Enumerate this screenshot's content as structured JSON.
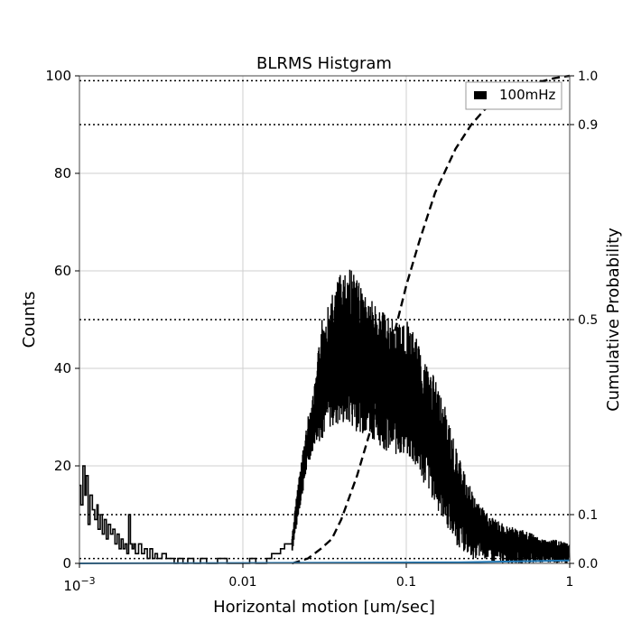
{
  "chart_data": {
    "type": "line",
    "title": "BLRMS Histgram",
    "xlabel": "Horizontal motion [um/sec]",
    "ylabel": "Counts",
    "ylabel_right": "Cumulative Probability",
    "xscale": "log",
    "xlim": [
      0.001,
      1
    ],
    "ylim": [
      0,
      100
    ],
    "ylim_right": [
      0,
      1
    ],
    "x_ticks": [
      {
        "value": 0.001,
        "base": "10",
        "exp": "−3"
      },
      {
        "value": 0.01,
        "label": "0.01"
      },
      {
        "value": 0.1,
        "label": "0.1"
      },
      {
        "value": 1,
        "label": "1"
      }
    ],
    "y_ticks": [
      {
        "value": 0,
        "label": "0"
      },
      {
        "value": 20,
        "label": "20"
      },
      {
        "value": 40,
        "label": "40"
      },
      {
        "value": 60,
        "label": "60"
      },
      {
        "value": 80,
        "label": "80"
      },
      {
        "value": 100,
        "label": "100"
      }
    ],
    "y_right_ticks": [
      {
        "value": 0.0,
        "label": "0.0"
      },
      {
        "value": 0.1,
        "label": "0.1"
      },
      {
        "value": 0.5,
        "label": "0.5"
      },
      {
        "value": 0.9,
        "label": "0.9"
      },
      {
        "value": 1.0,
        "label": "1.0"
      }
    ],
    "reference_lines_right": [
      0.01,
      0.1,
      0.5,
      0.9,
      0.99
    ],
    "grid": true,
    "legend": {
      "position": "top-right",
      "entries": [
        "100mHz"
      ]
    },
    "series": [
      {
        "name": "100mHz",
        "style": "solid",
        "color": "#000000",
        "axis": "left",
        "band": {
          "x": [
            0.02,
            0.022,
            0.025,
            0.028,
            0.03,
            0.035,
            0.04,
            0.045,
            0.05,
            0.06,
            0.07,
            0.08,
            0.09,
            0.1,
            0.12,
            0.14,
            0.16,
            0.18,
            0.2,
            0.23,
            0.26,
            0.3,
            0.35,
            0.4,
            0.5,
            0.6,
            0.7,
            0.8,
            1.0
          ],
          "low": [
            2,
            10,
            20,
            25,
            25,
            28,
            28,
            28,
            27,
            26,
            24,
            22,
            22,
            22,
            18,
            14,
            10,
            7,
            4,
            2,
            1,
            1,
            0,
            0,
            0,
            0,
            0,
            0,
            0
          ],
          "high": [
            6,
            18,
            30,
            38,
            50,
            55,
            60,
            62,
            58,
            55,
            52,
            50,
            50,
            50,
            45,
            40,
            36,
            30,
            24,
            18,
            14,
            11,
            9,
            8,
            7,
            6,
            5,
            5,
            4
          ]
        },
        "points": [
          [
            0.001,
            16
          ],
          [
            0.00102,
            12
          ],
          [
            0.00105,
            20
          ],
          [
            0.00108,
            14
          ],
          [
            0.0011,
            18
          ],
          [
            0.00113,
            8
          ],
          [
            0.00116,
            14
          ],
          [
            0.0012,
            11
          ],
          [
            0.00124,
            9
          ],
          [
            0.00128,
            12
          ],
          [
            0.0013,
            7
          ],
          [
            0.00134,
            10
          ],
          [
            0.00138,
            6
          ],
          [
            0.00142,
            9
          ],
          [
            0.00146,
            5
          ],
          [
            0.0015,
            8
          ],
          [
            0.00155,
            6
          ],
          [
            0.0016,
            7
          ],
          [
            0.00165,
            4
          ],
          [
            0.0017,
            6
          ],
          [
            0.00175,
            3
          ],
          [
            0.0018,
            5
          ],
          [
            0.00185,
            3
          ],
          [
            0.0019,
            4
          ],
          [
            0.00195,
            2
          ],
          [
            0.002,
            10
          ],
          [
            0.00205,
            4
          ],
          [
            0.0021,
            3
          ],
          [
            0.00215,
            4
          ],
          [
            0.0022,
            2
          ],
          [
            0.0023,
            4
          ],
          [
            0.0024,
            2
          ],
          [
            0.0025,
            3
          ],
          [
            0.0026,
            1
          ],
          [
            0.0027,
            3
          ],
          [
            0.0028,
            1
          ],
          [
            0.0029,
            2
          ],
          [
            0.003,
            1
          ],
          [
            0.0032,
            2
          ],
          [
            0.0034,
            1
          ],
          [
            0.0036,
            1
          ],
          [
            0.0038,
            0
          ],
          [
            0.004,
            1
          ],
          [
            0.0043,
            0
          ],
          [
            0.0046,
            1
          ],
          [
            0.005,
            0
          ],
          [
            0.0055,
            1
          ],
          [
            0.006,
            0
          ],
          [
            0.0065,
            0
          ],
          [
            0.007,
            1
          ],
          [
            0.008,
            0
          ],
          [
            0.009,
            0
          ],
          [
            0.01,
            0
          ],
          [
            0.011,
            1
          ],
          [
            0.012,
            0
          ],
          [
            0.013,
            0
          ],
          [
            0.014,
            1
          ],
          [
            0.015,
            2
          ],
          [
            0.016,
            2
          ],
          [
            0.017,
            3
          ],
          [
            0.018,
            4
          ],
          [
            0.019,
            4
          ],
          [
            0.02,
            5
          ]
        ]
      },
      {
        "name": "",
        "style": "dashed",
        "color": "#000000",
        "axis": "right",
        "x": [
          0.02,
          0.025,
          0.03,
          0.035,
          0.04,
          0.05,
          0.06,
          0.07,
          0.08,
          0.1,
          0.12,
          0.15,
          0.2,
          0.25,
          0.3,
          0.4,
          0.5,
          0.6,
          0.7,
          0.8,
          0.9,
          1.0
        ],
        "y": [
          0.0,
          0.01,
          0.03,
          0.05,
          0.09,
          0.18,
          0.27,
          0.36,
          0.44,
          0.57,
          0.66,
          0.76,
          0.85,
          0.9,
          0.93,
          0.96,
          0.975,
          0.985,
          0.99,
          0.995,
          0.998,
          1.0
        ]
      },
      {
        "name": "",
        "style": "solid",
        "color": "#1f77b4",
        "axis": "left",
        "x": [
          0.001,
          0.2,
          1.0
        ],
        "y": [
          0.0,
          0.2,
          0.6
        ]
      }
    ]
  }
}
